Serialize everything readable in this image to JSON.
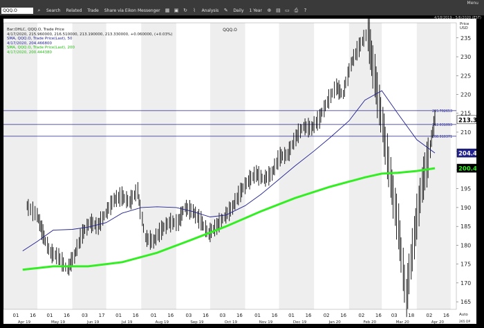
{
  "toolbar": {
    "symbol": "QQQ.O",
    "search_label": "Search",
    "related_label": "Related",
    "trade_label": "Trade",
    "share_label": "Share via Eikon Messenger",
    "analysis_label": "Analysis",
    "interval_label": "Daily",
    "range_label": "1 Year",
    "menu_label": "Menu"
  },
  "date_range": "4/18/2019 - 5/6/2020 (EST)",
  "chart_title": "QQQ.O",
  "legend": {
    "line1": "Bar;OHLC, QQQ.O, Trade Price",
    "line2": "4/17/2020, 215.960000, 216.510000, 213.190000, 213.330000, +0.060000, (+0.03%)",
    "line3": "SMA, QQQ.O, Trade Price(Last), 50",
    "line4": "4/17/2020, 204.466800",
    "line5": "SMA, QQQ.O, Trade Price(Last), 200",
    "line6": "4/17/2020, 200.444380"
  },
  "colors": {
    "price_bars": "#000000",
    "sma50": "#20208f",
    "sma200": "#33ee22",
    "level_lines": "#20208f",
    "last_price_box": "#ffffff",
    "sma200_box": "#000000"
  },
  "chart_data": {
    "type": "line",
    "title": "QQQ.O",
    "ylabel": "Price\nUSD",
    "xlabel": "",
    "ylim": [
      163,
      239
    ],
    "yticks": [
      165,
      170,
      175,
      180,
      185,
      190,
      195,
      200,
      205,
      210,
      215,
      220,
      225,
      230,
      235
    ],
    "grid": "vertical month bands",
    "legend_placement": "top-left",
    "x_tick_labels": [
      "01",
      "16",
      "01",
      "16",
      "03",
      "17",
      "01",
      "16",
      "01",
      "16",
      "03",
      "16",
      "03",
      "16",
      "01",
      "16",
      "01",
      "16",
      "02",
      "16",
      "02",
      "16",
      "03",
      "18",
      "02",
      "16",
      "01",
      "16",
      "01"
    ],
    "month_labels": [
      "Apr 19",
      "May 19",
      "Jun 19",
      "Jul 19",
      "Aug 19",
      "Sep 19",
      "Oct 19",
      "Nov 19",
      "Dec 19",
      "Jan 20",
      "Feb 20",
      "Mar 20",
      "Apr 20"
    ],
    "sma200": {
      "name": "SMA, QQQ.O, Trade Price(Last), 200",
      "x": [
        "2019-04-18",
        "2019-05-15",
        "2019-06-15",
        "2019-07-15",
        "2019-08-15",
        "2019-09-15",
        "2019-10-15",
        "2019-11-15",
        "2019-12-15",
        "2020-01-15",
        "2020-02-15",
        "2020-03-01",
        "2020-03-15",
        "2020-04-01",
        "2020-04-17"
      ],
      "y": [
        173.5,
        174.4,
        174.4,
        175.5,
        178.0,
        181.5,
        185.0,
        189.0,
        192.5,
        195.5,
        198.0,
        199.0,
        199.2,
        199.7,
        200.44
      ]
    },
    "sma50": {
      "name": "SMA, QQQ.O, Trade Price(Last), 50",
      "x": [
        "2019-04-18",
        "2019-05-01",
        "2019-05-15",
        "2019-06-01",
        "2019-06-15",
        "2019-07-01",
        "2019-07-15",
        "2019-08-01",
        "2019-08-15",
        "2019-09-01",
        "2019-09-15",
        "2019-10-01",
        "2019-10-15",
        "2019-11-01",
        "2019-11-15",
        "2019-12-01",
        "2019-12-15",
        "2020-01-01",
        "2020-01-15",
        "2020-02-01",
        "2020-02-15",
        "2020-03-01",
        "2020-03-15",
        "2020-04-01",
        "2020-04-17"
      ],
      "y": [
        178.5,
        181.0,
        184.0,
        184.2,
        184.8,
        186.0,
        188.5,
        190.0,
        190.2,
        190.0,
        189.0,
        187.5,
        188.0,
        190.5,
        193.5,
        197.5,
        201.0,
        205.0,
        208.5,
        213.0,
        218.5,
        221.0,
        215.0,
        208.0,
        204.47
      ]
    },
    "price": {
      "name": "Bar;OHLC, QQQ.O, Trade Price",
      "x": [
        "2019-04-22",
        "2019-05-01",
        "2019-05-06",
        "2019-05-13",
        "2019-05-20",
        "2019-05-28",
        "2019-06-03",
        "2019-06-10",
        "2019-06-17",
        "2019-06-24",
        "2019-07-01",
        "2019-07-08",
        "2019-07-15",
        "2019-07-22",
        "2019-07-29",
        "2019-08-05",
        "2019-08-12",
        "2019-08-19",
        "2019-08-26",
        "2019-09-03",
        "2019-09-09",
        "2019-09-16",
        "2019-09-23",
        "2019-09-30",
        "2019-10-07",
        "2019-10-14",
        "2019-10-21",
        "2019-10-28",
        "2019-11-04",
        "2019-11-11",
        "2019-11-18",
        "2019-11-25",
        "2019-12-02",
        "2019-12-09",
        "2019-12-16",
        "2019-12-23",
        "2019-12-30",
        "2020-01-06",
        "2020-01-13",
        "2020-01-21",
        "2020-01-27",
        "2020-02-03",
        "2020-02-10",
        "2020-02-18",
        "2020-02-24",
        "2020-03-02",
        "2020-03-09",
        "2020-03-16",
        "2020-03-23",
        "2020-03-30",
        "2020-04-06",
        "2020-04-13",
        "2020-04-17"
      ],
      "y": [
        190.5,
        188.0,
        183.0,
        178.0,
        177.0,
        173.5,
        177.0,
        183.0,
        186.0,
        185.0,
        188.5,
        192.0,
        193.0,
        191.5,
        194.5,
        182.0,
        181.0,
        184.0,
        186.0,
        186.0,
        190.0,
        189.0,
        186.5,
        183.0,
        185.0,
        187.5,
        190.0,
        194.0,
        197.0,
        199.0,
        197.5,
        199.0,
        203.5,
        204.0,
        208.5,
        211.5,
        211.0,
        213.5,
        218.0,
        222.0,
        220.0,
        228.0,
        232.5,
        236.5,
        225.0,
        212.0,
        198.0,
        185.0,
        166.0,
        182.0,
        196.0,
        205.0,
        213.33
      ]
    },
    "price_lines": [
      {
        "value": 215.702653,
        "label": "215.702653"
      },
      {
        "value": 212.031093,
        "label": "212.031093"
      },
      {
        "value": 208.910371,
        "label": "208.910371"
      }
    ],
    "last_price_label": "213.330",
    "sma50_label": "204.467",
    "sma200_label": "200.444"
  },
  "footer": {
    "auto_label": "Auto",
    "scale_label": "265 DP"
  }
}
